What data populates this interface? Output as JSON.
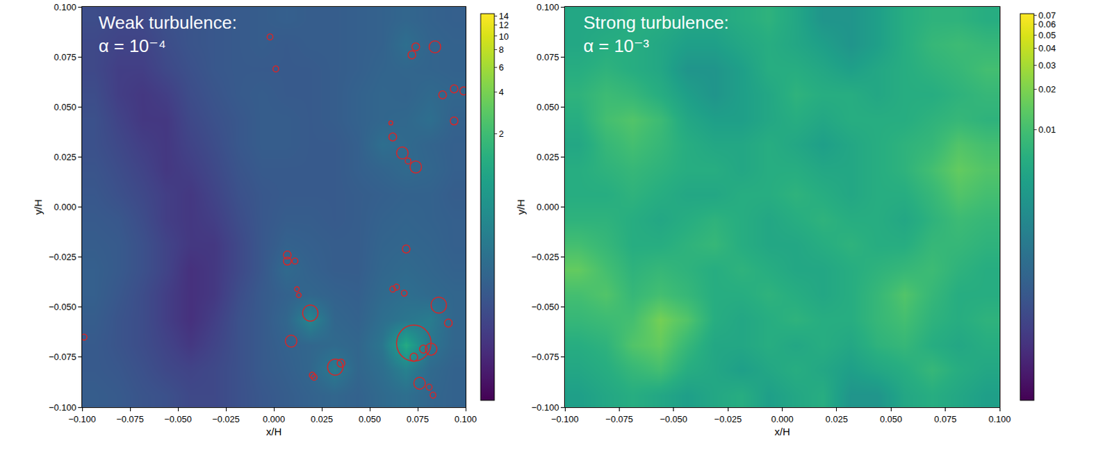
{
  "chart_data": [
    {
      "type": "heatmap",
      "annotation": [
        "Weak turbulence:",
        "α = 10⁻⁴"
      ],
      "x_label": "x/H",
      "y_label": "y/H",
      "xlim": [
        -0.1,
        0.1
      ],
      "ylim": [
        -0.1,
        0.1
      ],
      "xticks": [
        {
          "value": -0.1,
          "label": "−0.100"
        },
        {
          "value": -0.075,
          "label": "−0.075"
        },
        {
          "value": -0.05,
          "label": "−0.050"
        },
        {
          "value": -0.025,
          "label": "−0.025"
        },
        {
          "value": 0,
          "label": "0.000"
        },
        {
          "value": 0.025,
          "label": "0.025"
        },
        {
          "value": 0.05,
          "label": "0.050"
        },
        {
          "value": 0.075,
          "label": "0.075"
        },
        {
          "value": 0.1,
          "label": "0.100"
        }
      ],
      "yticks": [
        {
          "value": -0.1,
          "label": "−0.100"
        },
        {
          "value": -0.075,
          "label": "−0.075"
        },
        {
          "value": -0.05,
          "label": "−0.050"
        },
        {
          "value": -0.025,
          "label": "−0.025"
        },
        {
          "value": 0,
          "label": "0.000"
        },
        {
          "value": 0.025,
          "label": "0.025"
        },
        {
          "value": 0.05,
          "label": "0.050"
        },
        {
          "value": 0.075,
          "label": "0.075"
        },
        {
          "value": 0.1,
          "label": "0.100"
        }
      ],
      "x": [
        -0.09375,
        -0.08125,
        -0.06875,
        -0.05625,
        -0.04375,
        -0.03125,
        -0.01875,
        -0.00625,
        0.00625,
        0.01875,
        0.03125,
        0.04375,
        0.05625,
        0.06875,
        0.08125,
        0.09375
      ],
      "y": [
        -0.09375,
        -0.08125,
        -0.06875,
        -0.05625,
        -0.04375,
        -0.03125,
        -0.01875,
        -0.00625,
        0.00625,
        0.01875,
        0.03125,
        0.04375,
        0.05625,
        0.06875,
        0.08125,
        0.09375
      ],
      "z": [
        [
          0.16,
          0.15,
          0.13,
          0.12,
          0.1,
          0.1,
          0.12,
          0.14,
          0.16,
          0.18,
          0.2,
          0.18,
          0.22,
          0.25,
          0.2,
          0.18
        ],
        [
          0.15,
          0.14,
          0.12,
          0.1,
          0.09,
          0.1,
          0.12,
          0.15,
          0.17,
          0.2,
          0.35,
          0.2,
          0.25,
          0.4,
          0.22,
          0.18
        ],
        [
          0.15,
          0.13,
          0.11,
          0.09,
          0.07,
          0.09,
          0.12,
          0.15,
          0.18,
          0.2,
          0.22,
          0.2,
          0.3,
          1.2,
          0.3,
          0.2
        ],
        [
          0.16,
          0.13,
          0.11,
          0.08,
          0.06,
          0.08,
          0.12,
          0.15,
          0.2,
          0.45,
          0.2,
          0.18,
          0.25,
          0.3,
          0.35,
          0.2
        ],
        [
          0.17,
          0.14,
          0.11,
          0.08,
          0.06,
          0.07,
          0.11,
          0.15,
          0.18,
          0.2,
          0.18,
          0.17,
          0.22,
          0.25,
          0.22,
          0.2
        ],
        [
          0.17,
          0.15,
          0.12,
          0.09,
          0.06,
          0.07,
          0.1,
          0.14,
          0.22,
          0.18,
          0.16,
          0.16,
          0.2,
          0.22,
          0.2,
          0.18
        ],
        [
          0.16,
          0.15,
          0.12,
          0.09,
          0.07,
          0.07,
          0.1,
          0.14,
          0.18,
          0.17,
          0.16,
          0.16,
          0.19,
          0.2,
          0.19,
          0.17
        ],
        [
          0.15,
          0.14,
          0.11,
          0.08,
          0.07,
          0.08,
          0.11,
          0.14,
          0.16,
          0.16,
          0.15,
          0.16,
          0.18,
          0.19,
          0.18,
          0.17
        ],
        [
          0.14,
          0.12,
          0.1,
          0.08,
          0.07,
          0.09,
          0.12,
          0.14,
          0.15,
          0.15,
          0.15,
          0.16,
          0.17,
          0.18,
          0.18,
          0.16
        ],
        [
          0.13,
          0.11,
          0.09,
          0.07,
          0.08,
          0.1,
          0.13,
          0.15,
          0.15,
          0.15,
          0.15,
          0.17,
          0.19,
          0.22,
          0.2,
          0.17
        ],
        [
          0.12,
          0.1,
          0.08,
          0.07,
          0.09,
          0.11,
          0.14,
          0.16,
          0.16,
          0.15,
          0.15,
          0.17,
          0.25,
          0.22,
          0.19,
          0.17
        ],
        [
          0.12,
          0.09,
          0.07,
          0.07,
          0.1,
          0.12,
          0.14,
          0.16,
          0.16,
          0.15,
          0.16,
          0.18,
          0.2,
          0.21,
          0.25,
          0.18
        ],
        [
          0.11,
          0.08,
          0.07,
          0.08,
          0.11,
          0.13,
          0.15,
          0.16,
          0.15,
          0.15,
          0.16,
          0.18,
          0.2,
          0.19,
          0.22,
          0.2
        ],
        [
          0.1,
          0.08,
          0.08,
          0.1,
          0.12,
          0.14,
          0.15,
          0.15,
          0.15,
          0.15,
          0.16,
          0.17,
          0.19,
          0.2,
          0.19,
          0.18
        ],
        [
          0.1,
          0.09,
          0.09,
          0.11,
          0.13,
          0.14,
          0.15,
          0.16,
          0.15,
          0.16,
          0.16,
          0.17,
          0.18,
          0.25,
          0.19,
          0.18
        ],
        [
          0.11,
          0.1,
          0.1,
          0.12,
          0.13,
          0.14,
          0.15,
          0.16,
          0.17,
          0.16,
          0.16,
          0.17,
          0.18,
          0.2,
          0.18,
          0.17
        ]
      ],
      "log": "colorbar",
      "colorbar_range": [
        0.025,
        14.5
      ],
      "colorbar_ticks": [
        2,
        4,
        6,
        8,
        10,
        12,
        14
      ],
      "circles": {
        "color": "#d62728",
        "x": [
          -0.099,
          -0.002,
          0.001,
          0.074,
          0.072,
          0.084,
          0.094,
          0.099,
          0.088,
          0.094,
          0.061,
          0.062,
          0.067,
          0.07,
          0.074,
          0.007,
          0.007,
          0.011,
          0.012,
          0.013,
          0.069,
          0.019,
          0.009,
          0.062,
          0.064,
          0.068,
          0.086,
          0.091,
          0.073,
          0.082,
          0.078,
          0.073,
          0.032,
          0.035,
          0.02,
          0.021,
          0.076,
          0.081,
          0.083
        ],
        "y": [
          -0.065,
          0.085,
          0.069,
          0.08,
          0.076,
          0.08,
          0.059,
          0.058,
          0.056,
          0.043,
          0.042,
          0.035,
          0.027,
          0.023,
          0.02,
          -0.024,
          -0.027,
          -0.027,
          -0.041,
          -0.044,
          -0.021,
          -0.053,
          -0.067,
          -0.041,
          -0.04,
          -0.043,
          -0.049,
          -0.058,
          -0.068,
          -0.071,
          -0.071,
          -0.075,
          -0.08,
          -0.078,
          -0.084,
          -0.085,
          -0.088,
          -0.09,
          -0.094
        ],
        "r": [
          0.0015,
          0.0015,
          0.0015,
          0.002,
          0.002,
          0.003,
          0.002,
          0.002,
          0.002,
          0.002,
          0.001,
          0.002,
          0.003,
          0.0015,
          0.003,
          0.002,
          0.002,
          0.0015,
          0.0012,
          0.0012,
          0.002,
          0.004,
          0.003,
          0.0015,
          0.0015,
          0.0015,
          0.004,
          0.002,
          0.009,
          0.003,
          0.002,
          0.002,
          0.004,
          0.002,
          0.0015,
          0.0015,
          0.003,
          0.0015,
          0.0015
        ]
      }
    },
    {
      "type": "heatmap",
      "annotation": [
        "Strong turbulence:",
        "α = 10⁻³"
      ],
      "x_label": "x/H",
      "y_label": "y/H",
      "xlim": [
        -0.1,
        0.1
      ],
      "ylim": [
        -0.1,
        0.1
      ],
      "xticks": [
        {
          "value": -0.1,
          "label": "−0.100"
        },
        {
          "value": -0.075,
          "label": "−0.075"
        },
        {
          "value": -0.05,
          "label": "−0.050"
        },
        {
          "value": -0.025,
          "label": "−0.025"
        },
        {
          "value": 0,
          "label": "0.000"
        },
        {
          "value": 0.025,
          "label": "0.025"
        },
        {
          "value": 0.05,
          "label": "0.050"
        },
        {
          "value": 0.075,
          "label": "0.075"
        },
        {
          "value": 0.1,
          "label": "0.100"
        }
      ],
      "yticks": [
        {
          "value": -0.1,
          "label": "−0.100"
        },
        {
          "value": -0.075,
          "label": "−0.075"
        },
        {
          "value": -0.05,
          "label": "−0.050"
        },
        {
          "value": -0.025,
          "label": "−0.025"
        },
        {
          "value": 0,
          "label": "0.000"
        },
        {
          "value": 0.025,
          "label": "0.025"
        },
        {
          "value": 0.05,
          "label": "0.050"
        },
        {
          "value": 0.075,
          "label": "0.075"
        },
        {
          "value": 0.1,
          "label": "0.100"
        }
      ],
      "x": [
        -0.09375,
        -0.08125,
        -0.06875,
        -0.05625,
        -0.04375,
        -0.03125,
        -0.01875,
        -0.00625,
        0.00625,
        0.01875,
        0.03125,
        0.04375,
        0.05625,
        0.06875,
        0.08125,
        0.09375
      ],
      "y": [
        -0.09375,
        -0.08125,
        -0.06875,
        -0.05625,
        -0.04375,
        -0.03125,
        -0.01875,
        -0.00625,
        0.00625,
        0.01875,
        0.03125,
        0.04375,
        0.05625,
        0.06875,
        0.08125,
        0.09375
      ],
      "z": [
        [
          0.004,
          0.005,
          0.006,
          0.005,
          0.004,
          0.005,
          0.006,
          0.004,
          0.005,
          0.006,
          0.003,
          0.003,
          0.005,
          0.006,
          0.005,
          0.004
        ],
        [
          0.005,
          0.006,
          0.008,
          0.01,
          0.006,
          0.005,
          0.004,
          0.005,
          0.006,
          0.005,
          0.004,
          0.005,
          0.006,
          0.008,
          0.006,
          0.005
        ],
        [
          0.006,
          0.007,
          0.012,
          0.015,
          0.008,
          0.005,
          0.005,
          0.006,
          0.005,
          0.006,
          0.005,
          0.007,
          0.008,
          0.006,
          0.005,
          0.006
        ],
        [
          0.008,
          0.009,
          0.01,
          0.018,
          0.012,
          0.006,
          0.005,
          0.006,
          0.007,
          0.006,
          0.006,
          0.008,
          0.01,
          0.007,
          0.006,
          0.007
        ],
        [
          0.01,
          0.012,
          0.008,
          0.01,
          0.008,
          0.006,
          0.006,
          0.007,
          0.006,
          0.005,
          0.006,
          0.008,
          0.012,
          0.008,
          0.006,
          0.006
        ],
        [
          0.015,
          0.01,
          0.007,
          0.008,
          0.007,
          0.006,
          0.007,
          0.006,
          0.005,
          0.005,
          0.006,
          0.007,
          0.008,
          0.009,
          0.007,
          0.006
        ],
        [
          0.01,
          0.008,
          0.006,
          0.006,
          0.007,
          0.008,
          0.006,
          0.005,
          0.005,
          0.006,
          0.007,
          0.006,
          0.006,
          0.008,
          0.008,
          0.007
        ],
        [
          0.007,
          0.007,
          0.006,
          0.005,
          0.006,
          0.007,
          0.006,
          0.005,
          0.006,
          0.007,
          0.006,
          0.006,
          0.005,
          0.007,
          0.009,
          0.008
        ],
        [
          0.006,
          0.006,
          0.007,
          0.006,
          0.005,
          0.005,
          0.006,
          0.006,
          0.007,
          0.006,
          0.005,
          0.006,
          0.006,
          0.008,
          0.012,
          0.01
        ],
        [
          0.006,
          0.007,
          0.008,
          0.007,
          0.006,
          0.006,
          0.005,
          0.006,
          0.006,
          0.005,
          0.005,
          0.006,
          0.007,
          0.01,
          0.015,
          0.012
        ],
        [
          0.005,
          0.008,
          0.01,
          0.008,
          0.006,
          0.005,
          0.005,
          0.006,
          0.005,
          0.004,
          0.005,
          0.006,
          0.007,
          0.008,
          0.012,
          0.01
        ],
        [
          0.006,
          0.01,
          0.012,
          0.009,
          0.005,
          0.004,
          0.004,
          0.005,
          0.006,
          0.005,
          0.006,
          0.006,
          0.006,
          0.007,
          0.008,
          0.007
        ],
        [
          0.007,
          0.009,
          0.008,
          0.006,
          0.004,
          0.003,
          0.004,
          0.005,
          0.007,
          0.006,
          0.006,
          0.005,
          0.006,
          0.006,
          0.007,
          0.008
        ],
        [
          0.006,
          0.007,
          0.006,
          0.005,
          0.003,
          0.003,
          0.004,
          0.006,
          0.006,
          0.005,
          0.004,
          0.005,
          0.006,
          0.007,
          0.008,
          0.01
        ],
        [
          0.005,
          0.006,
          0.006,
          0.005,
          0.004,
          0.004,
          0.005,
          0.006,
          0.005,
          0.004,
          0.003,
          0.004,
          0.006,
          0.008,
          0.009,
          0.008
        ],
        [
          0.005,
          0.005,
          0.006,
          0.006,
          0.005,
          0.005,
          0.006,
          0.007,
          0.005,
          0.003,
          0.003,
          0.004,
          0.006,
          0.007,
          0.007,
          0.006
        ]
      ],
      "log": "colorbar",
      "colorbar_range": [
        0.0001,
        0.072
      ],
      "colorbar_ticks": [
        0.01,
        0.02,
        0.03,
        0.04,
        0.05,
        0.06,
        0.07
      ]
    }
  ]
}
